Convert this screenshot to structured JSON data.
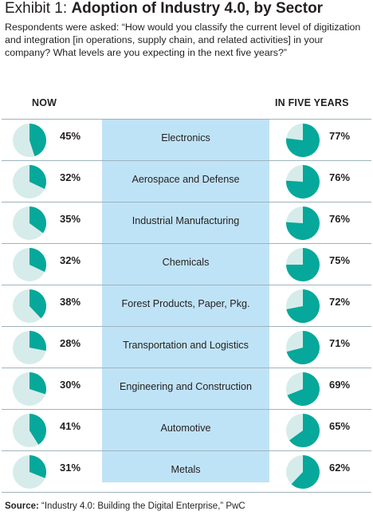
{
  "title": {
    "exhibit": "Exhibit 1:",
    "text": "Adoption of Industry 4.0, by Sector"
  },
  "question": "Respondents were asked: “How would you classify the current level of digitization and integration [in operations, supply chain, and related activities] in your company? What levels are you expecting in the next five years?”",
  "headers": {
    "now": "NOW",
    "future": "IN FIVE YEARS"
  },
  "colors": {
    "pie_fill": "#05a89a",
    "pie_bg": "#d6ecea",
    "band": "#bfe3f6",
    "rule": "#9fb3bd"
  },
  "chart_data": {
    "type": "pie",
    "categories": [
      "Electronics",
      "Aerospace and Defense",
      "Industrial Manufacturing",
      "Chemicals",
      "Forest Products, Paper, Pkg.",
      "Transportation and Logistics",
      "Engineering and Construction",
      "Automotive",
      "Metals"
    ],
    "series": [
      {
        "name": "NOW",
        "values": [
          45,
          32,
          35,
          32,
          38,
          28,
          30,
          41,
          31
        ],
        "labels": [
          "45%",
          "32%",
          "35%",
          "32%",
          "38%",
          "28%",
          "30%",
          "41%",
          "31%"
        ]
      },
      {
        "name": "IN FIVE YEARS",
        "values": [
          77,
          76,
          76,
          75,
          72,
          71,
          69,
          65,
          62
        ],
        "labels": [
          "77%",
          "76%",
          "76%",
          "75%",
          "72%",
          "71%",
          "69%",
          "65%",
          "62%"
        ]
      }
    ]
  },
  "source": {
    "label": "Source:",
    "text": "“Industry 4.0: Building the Digital Enterprise,” PwC"
  }
}
